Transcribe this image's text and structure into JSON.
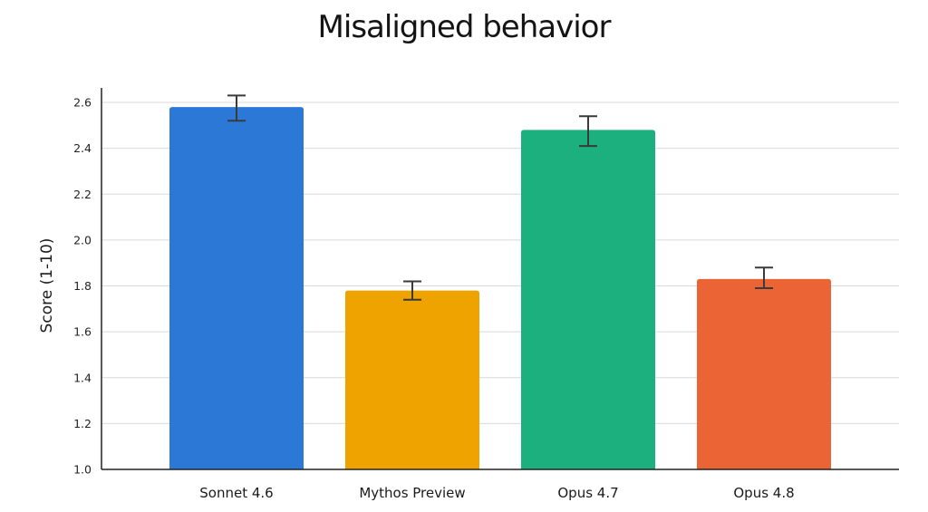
{
  "chart_data": {
    "type": "bar",
    "title": "Misaligned behavior",
    "xlabel": "",
    "ylabel": "Score (1-10)",
    "categories": [
      "Sonnet 4.6",
      "Mythos Preview",
      "Opus 4.7",
      "Opus 4.8"
    ],
    "values": [
      2.58,
      1.78,
      2.48,
      1.83
    ],
    "error_bars": [
      {
        "low": 2.52,
        "high": 2.63
      },
      {
        "low": 1.74,
        "high": 1.82
      },
      {
        "low": 2.41,
        "high": 2.54
      },
      {
        "low": 1.79,
        "high": 1.88
      }
    ],
    "colors": [
      "#2C78D6",
      "#EEA300",
      "#1BB07D",
      "#EB6436"
    ],
    "ylim": [
      1.0,
      2.6
    ],
    "yticks": [
      "1.0",
      "1.2",
      "1.4",
      "1.6",
      "1.8",
      "2.0",
      "2.2",
      "2.4",
      "2.6"
    ],
    "grid": true,
    "legend": "none"
  }
}
